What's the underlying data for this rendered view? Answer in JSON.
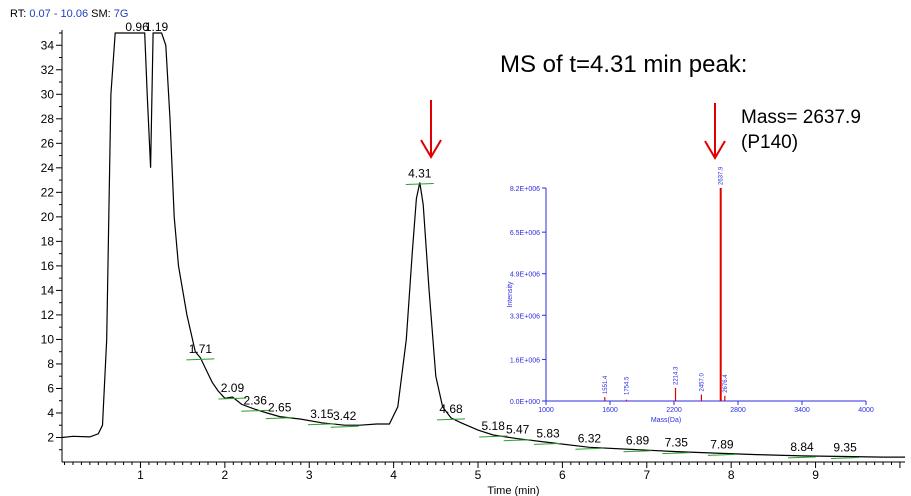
{
  "header": {
    "rt_label": "RT:",
    "rt_value": "0.07 - 10.06",
    "sm_label": "SM:",
    "sm_value": "7G"
  },
  "annotations": {
    "ms_title": "MS of t=4.31 min peak:",
    "mass_line1": "Mass= 2637.9",
    "mass_line2": "(P140)"
  },
  "colors": {
    "trace": "#000000",
    "baseline": "#2e9e2e",
    "arrow": "#e00000",
    "ms_peaks": "#e00000",
    "ms_axis": "#2d2de0",
    "header_values": "#1f3fbf"
  },
  "chart_data": [
    {
      "type": "line",
      "title": "",
      "xlabel": "Time (min)",
      "ylabel": "",
      "xlim": [
        0.07,
        10.06
      ],
      "ylim": [
        0,
        35
      ],
      "x_ticks": [
        1,
        2,
        3,
        4,
        5,
        6,
        7,
        8,
        9
      ],
      "y_ticks": [
        2,
        4,
        6,
        8,
        10,
        12,
        14,
        16,
        18,
        20,
        22,
        24,
        26,
        28,
        30,
        32,
        34
      ],
      "series": [
        {
          "x": [
            0.07,
            0.2,
            0.4,
            0.5,
            0.55,
            0.6,
            0.65,
            0.7,
            0.75,
            0.8,
            0.9,
            1.0,
            1.05,
            1.08,
            1.12,
            1.15,
            1.2,
            1.25,
            1.3,
            1.35,
            1.4,
            1.45,
            1.5,
            1.55,
            1.6,
            1.65,
            1.71,
            1.78,
            1.85,
            1.92,
            2.0,
            2.09,
            2.2,
            2.36,
            2.5,
            2.65,
            2.9,
            3.15,
            3.42,
            3.6,
            3.8,
            3.95,
            4.05,
            4.15,
            4.22,
            4.27,
            4.31,
            4.35,
            4.42,
            4.5,
            4.58,
            4.68,
            4.8,
            5.0,
            5.18,
            5.47,
            5.83,
            6.32,
            6.89,
            7.35,
            7.89,
            8.3,
            8.84,
            9.35,
            9.8,
            10.06
          ],
          "y": [
            2.0,
            2.1,
            2.05,
            2.3,
            3.0,
            10.0,
            30.0,
            35.0,
            35.0,
            35.0,
            35.0,
            35.0,
            35.0,
            30.0,
            24.0,
            35.0,
            35.0,
            35.0,
            34.0,
            28.0,
            20.0,
            16.0,
            14.0,
            12.0,
            10.5,
            9.0,
            8.5,
            7.5,
            6.5,
            5.8,
            5.2,
            5.3,
            4.7,
            4.3,
            4.0,
            3.7,
            3.5,
            3.2,
            3.0,
            3.0,
            3.1,
            3.1,
            4.5,
            10.0,
            17.0,
            21.5,
            22.8,
            21.0,
            14.0,
            7.0,
            4.5,
            3.6,
            3.2,
            2.6,
            2.2,
            1.9,
            1.6,
            1.2,
            1.0,
            0.85,
            0.7,
            0.6,
            0.5,
            0.45,
            0.4,
            0.4
          ],
          "peak_labels": [
            {
              "x": 0.96,
              "label": "0.96"
            },
            {
              "x": 1.19,
              "label": "1.19"
            },
            {
              "x": 1.71,
              "label": "1.71"
            },
            {
              "x": 2.09,
              "label": "2.09"
            },
            {
              "x": 2.36,
              "label": "2.36"
            },
            {
              "x": 2.65,
              "label": "2.65"
            },
            {
              "x": 3.15,
              "label": "3.15"
            },
            {
              "x": 3.42,
              "label": "3.42"
            },
            {
              "x": 4.31,
              "label": "4.31"
            },
            {
              "x": 4.68,
              "label": "4.68"
            },
            {
              "x": 5.18,
              "label": "5.18"
            },
            {
              "x": 5.47,
              "label": "5.47"
            },
            {
              "x": 5.83,
              "label": "5.83"
            },
            {
              "x": 6.32,
              "label": "6.32"
            },
            {
              "x": 6.89,
              "label": "6.89"
            },
            {
              "x": 7.35,
              "label": "7.35"
            },
            {
              "x": 7.89,
              "label": "7.89"
            },
            {
              "x": 8.84,
              "label": "8.84"
            },
            {
              "x": 9.35,
              "label": "9.35"
            }
          ]
        }
      ]
    },
    {
      "type": "bar",
      "title": "",
      "xlabel": "Mass(Da)",
      "ylabel": "Intensity",
      "xlim": [
        1000,
        4000
      ],
      "ylim": [
        0,
        8200000
      ],
      "x_ticks": [
        1000,
        1600,
        2200,
        2800,
        3400,
        4000
      ],
      "x_tick_labels": [
        "1000",
        "1600",
        "2200",
        "2800",
        "3400",
        "4000"
      ],
      "y_ticks": [
        0,
        1600000,
        3300000,
        4900000,
        6500000,
        8200000
      ],
      "y_tick_labels": [
        "0.0E+000",
        "1.6E+006",
        "3.3E+006",
        "4.9E+006",
        "6.5E+006",
        "8.2E+006"
      ],
      "peaks": [
        {
          "mass": 1551.4,
          "intensity": 150000,
          "label": "1551.4"
        },
        {
          "mass": 1754.5,
          "intensity": 50000,
          "label": "1754.5"
        },
        {
          "mass": 2214.3,
          "intensity": 500000,
          "label": "2214.3"
        },
        {
          "mass": 2457.0,
          "intensity": 250000,
          "label": "2457.0"
        },
        {
          "mass": 2637.9,
          "intensity": 8200000,
          "label": "2637.9"
        },
        {
          "mass": 2676.4,
          "intensity": 200000,
          "label": "2676.4"
        }
      ]
    }
  ]
}
